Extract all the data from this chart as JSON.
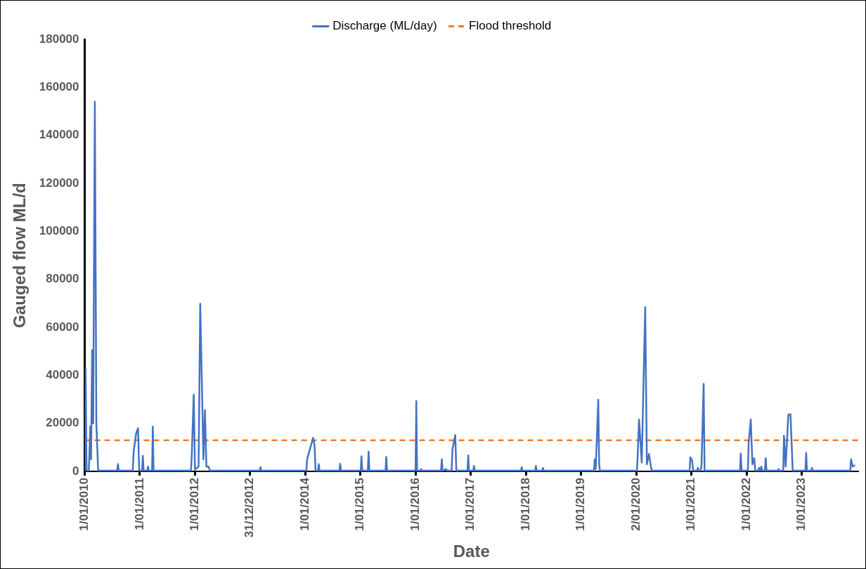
{
  "chart_data": {
    "type": "line",
    "xlabel": "Date",
    "ylabel": "Gauged flow ML/d",
    "xlim": [
      "2010-01-01",
      "2024-01-11"
    ],
    "xticks": [
      {
        "value": "2010-01-01",
        "label": "1/01/2010"
      },
      {
        "value": "2011-01-01",
        "label": "1/01/2011"
      },
      {
        "value": "2012-01-01",
        "label": "1/01/2012"
      },
      {
        "value": "2012-12-31",
        "label": "31/12/2012"
      },
      {
        "value": "2014-01-01",
        "label": "1/01/2014"
      },
      {
        "value": "2015-01-01",
        "label": "1/01/2015"
      },
      {
        "value": "2016-01-01",
        "label": "1/01/2016"
      },
      {
        "value": "2017-01-01",
        "label": "1/01/2017"
      },
      {
        "value": "2018-01-01",
        "label": "1/01/2018"
      },
      {
        "value": "2019-01-01",
        "label": "1/01/2019"
      },
      {
        "value": "2020-01-02",
        "label": "2/01/2020"
      },
      {
        "value": "2021-01-01",
        "label": "1/01/2021"
      },
      {
        "value": "2022-01-01",
        "label": "1/01/2022"
      },
      {
        "value": "2023-01-01",
        "label": "1/01/2023"
      }
    ],
    "ylim": [
      0,
      180000
    ],
    "yticks": [
      0,
      20000,
      40000,
      60000,
      80000,
      100000,
      120000,
      140000,
      160000,
      180000
    ],
    "grid": false,
    "legend": "top",
    "marker": "none",
    "ref_lines": [
      {
        "axis": "y",
        "value": 13000,
        "label": "Flood threshold",
        "color": "#ed7d31",
        "line_style": "dashed"
      }
    ],
    "series": [
      {
        "name": "Discharge (ML/day)",
        "color": "#4472c4",
        "line_style": "solid",
        "x": [
          "2010-01-01",
          "2010-01-07",
          "2010-01-13",
          "2010-01-28",
          "2010-02-07",
          "2010-02-12",
          "2010-02-19",
          "2010-02-26",
          "2010-03-09",
          "2010-03-19",
          "2010-03-31",
          "2010-08-04",
          "2010-08-09",
          "2010-08-14",
          "2010-11-15",
          "2010-11-22",
          "2010-12-08",
          "2010-12-20",
          "2010-12-28",
          "2011-01-16",
          "2011-01-21",
          "2011-01-26",
          "2011-02-19",
          "2011-02-24",
          "2011-03-01",
          "2011-03-23",
          "2011-03-28",
          "2011-04-02",
          "2011-12-05",
          "2011-12-10",
          "2011-12-24",
          "2012-01-01",
          "2012-01-25",
          "2012-02-05",
          "2012-02-17",
          "2012-02-26",
          "2012-03-07",
          "2012-03-17",
          "2012-03-31",
          "2012-04-10",
          "2013-03-05",
          "2013-03-10",
          "2013-03-15",
          "2014-01-08",
          "2014-01-13",
          "2014-02-22",
          "2014-03-03",
          "2014-03-10",
          "2014-03-26",
          "2014-03-31",
          "2014-04-05",
          "2014-08-15",
          "2014-08-20",
          "2014-08-25",
          "2015-01-03",
          "2015-01-08",
          "2015-01-13",
          "2015-02-19",
          "2015-02-24",
          "2015-03-01",
          "2015-06-16",
          "2015-06-21",
          "2015-06-26",
          "2016-01-01",
          "2016-01-06",
          "2016-01-11",
          "2016-02-02",
          "2016-02-07",
          "2016-02-12",
          "2016-06-18",
          "2016-06-23",
          "2016-06-28",
          "2016-07-22",
          "2016-07-27",
          "2016-08-27",
          "2016-09-01",
          "2016-09-20",
          "2016-09-27",
          "2016-12-10",
          "2016-12-15",
          "2016-12-20",
          "2017-01-17",
          "2017-01-22",
          "2017-01-27",
          "2017-11-29",
          "2017-12-04",
          "2017-12-09",
          "2018-03-03",
          "2018-03-08",
          "2018-03-13",
          "2018-04-19",
          "2018-04-24",
          "2018-04-29",
          "2019-03-28",
          "2019-04-02",
          "2019-04-08",
          "2019-04-20",
          "2019-04-25",
          "2019-05-01",
          "2019-05-06",
          "2020-01-06",
          "2020-01-11",
          "2020-01-20",
          "2020-02-07",
          "2020-03-01",
          "2020-03-12",
          "2020-03-26",
          "2020-04-08",
          "2020-04-14",
          "2020-12-20",
          "2020-12-25",
          "2021-01-06",
          "2021-01-12",
          "2021-02-08",
          "2021-02-13",
          "2021-02-18",
          "2021-03-04",
          "2021-03-09",
          "2021-03-23",
          "2021-03-29",
          "2021-11-19",
          "2021-11-24",
          "2021-11-29",
          "2022-01-10",
          "2022-01-15",
          "2022-01-29",
          "2022-02-09",
          "2022-02-21",
          "2022-02-28",
          "2022-03-20",
          "2022-03-25",
          "2022-04-01",
          "2022-04-09",
          "2022-04-14",
          "2022-05-03",
          "2022-05-08",
          "2022-05-13",
          "2022-07-27",
          "2022-08-01",
          "2022-08-06",
          "2022-09-01",
          "2022-09-06",
          "2022-09-17",
          "2022-10-05",
          "2022-10-19",
          "2022-11-03",
          "2023-01-26",
          "2023-01-31",
          "2023-02-05",
          "2023-03-06",
          "2023-03-11",
          "2023-03-16",
          "2023-11-19",
          "2023-11-24",
          "2023-12-05",
          "2023-12-18",
          "2023-12-21"
        ],
        "values": [
          300,
          43000,
          300,
          300,
          18700,
          5000,
          50500,
          20000,
          154000,
          20000,
          300,
          300,
          3000,
          300,
          300,
          8800,
          16000,
          18000,
          300,
          300,
          6500,
          300,
          300,
          2000,
          300,
          300,
          18700,
          300,
          300,
          5000,
          32000,
          800,
          2000,
          69800,
          33300,
          5000,
          25500,
          2000,
          2000,
          300,
          300,
          1800,
          300,
          300,
          5200,
          14000,
          11000,
          300,
          300,
          3000,
          300,
          300,
          3200,
          300,
          300,
          6300,
          300,
          300,
          8200,
          300,
          300,
          6000,
          300,
          300,
          29300,
          300,
          300,
          1000,
          300,
          300,
          5100,
          300,
          1000,
          300,
          300,
          9000,
          15200,
          300,
          300,
          6700,
          300,
          300,
          2300,
          300,
          300,
          1800,
          300,
          300,
          2300,
          300,
          300,
          1500,
          300,
          300,
          5100,
          1000,
          21000,
          29900,
          3000,
          300,
          300,
          6500,
          21600,
          3800,
          68400,
          3000,
          7300,
          2000,
          300,
          300,
          5900,
          4500,
          300,
          300,
          1500,
          300,
          300,
          3000,
          36500,
          300,
          300,
          7400,
          300,
          300,
          11700,
          21600,
          3000,
          5500,
          300,
          300,
          1500,
          300,
          2000,
          300,
          300,
          5500,
          300,
          300,
          1000,
          300,
          300,
          14900,
          2000,
          23700,
          23800,
          300,
          300,
          7700,
          300,
          300,
          1500,
          300,
          300,
          5000,
          2000,
          2500,
          2500
        ]
      }
    ]
  }
}
